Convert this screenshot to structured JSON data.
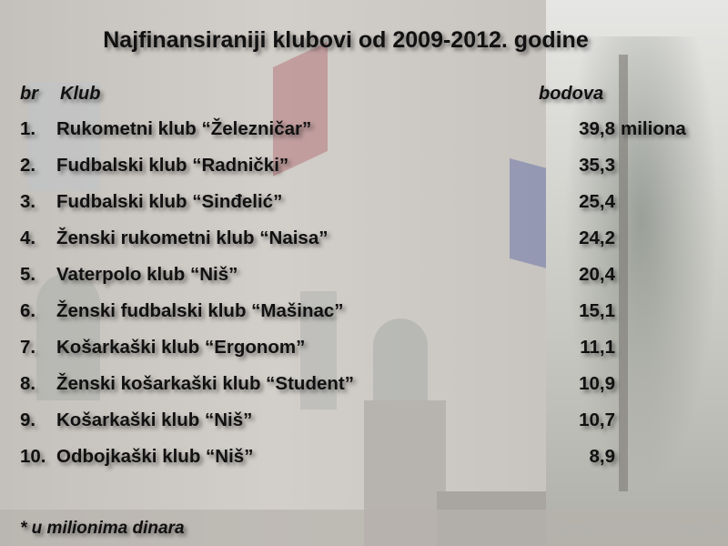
{
  "title": "Najfinansiraniji klubovi od 2009-2012. godine",
  "header": {
    "br": "br",
    "klub": "Klub",
    "bodova": "bodova"
  },
  "rows": [
    {
      "num": "1.",
      "name": "Rukometni klub “Železničar”",
      "value": "39,8",
      "unit": "miliona"
    },
    {
      "num": "2.",
      "name": "Fudbalski klub “Radnički”",
      "value": "35,3"
    },
    {
      "num": "3.",
      "name": "Fudbalski klub “Sinđelić”",
      "value": "25,4"
    },
    {
      "num": "4.",
      "name": "Ženski rukometni klub “Naisa”",
      "value": "24,2"
    },
    {
      "num": "5.",
      "name": "Vaterpolo klub “Niš”",
      "value": "20,4"
    },
    {
      "num": "6.",
      "name": "Ženski fudbalski klub “Mašinac”",
      "value": "15,1"
    },
    {
      "num": "7.",
      "name": "Košarkaški klub “Ergonom”",
      "value": "11,1"
    },
    {
      "num": "8.",
      "name": "Ženski košarkaški klub “Student”",
      "value": "10,9"
    },
    {
      "num": "9.",
      "name": "Košarkaški klub “Niš”",
      "value": "10,7"
    },
    {
      "num": "10.",
      "name": "Odbojkaški klub “Niš”",
      "value": "8,9"
    }
  ],
  "footnote": "* u milionima dinara",
  "colors": {
    "text": "#111111",
    "background_photo": "faded building facade with flags"
  }
}
